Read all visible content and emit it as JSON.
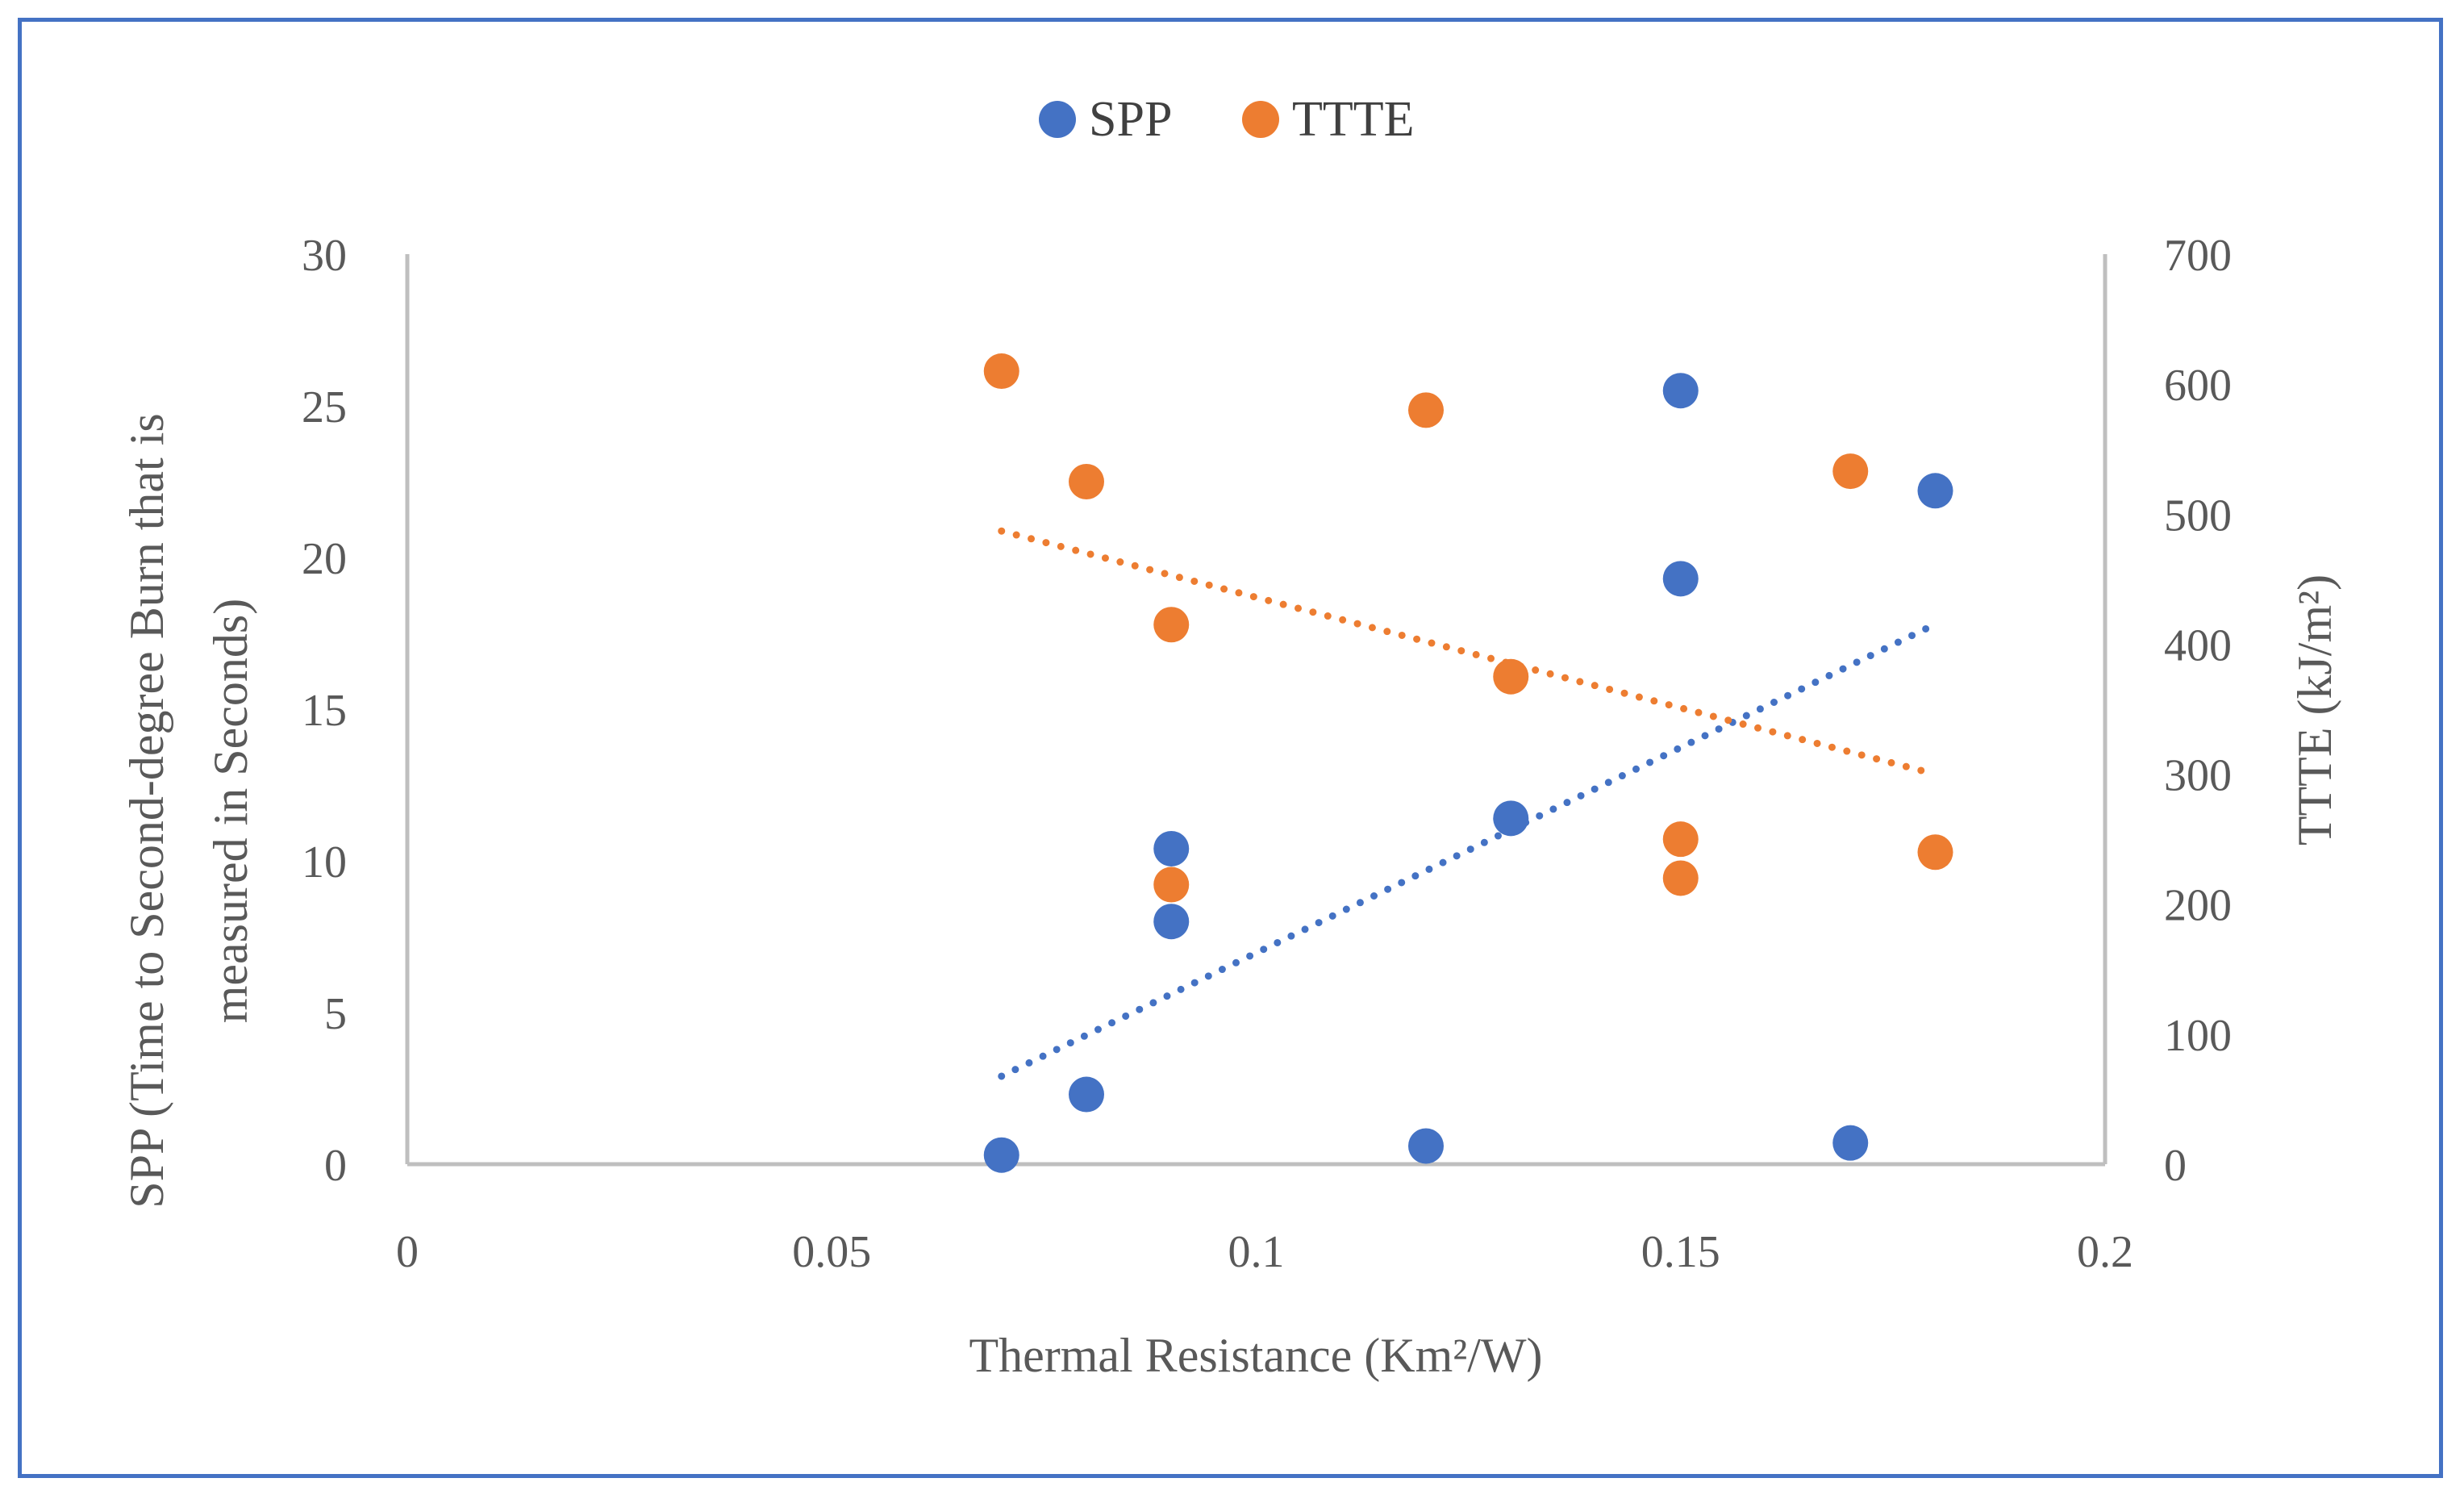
{
  "colors": {
    "frame": "#4472C4",
    "spp": "#4472C4",
    "ttte": "#ED7D31",
    "axis": "#BFBFBF",
    "text": "#595959",
    "y2_title": "#FF0000"
  },
  "chart_data": {
    "type": "scatter",
    "title": "",
    "legend": {
      "position": "top",
      "entries": [
        "SPP",
        "TTTE"
      ]
    },
    "xlabel": "Thermal Resistance (Km²/W)",
    "ylabel": "SPP (Time to Second-degree Burn that is measured in Seconds)",
    "ylabel_lines": [
      "SPP (Time to Second-degree Burn that is",
      "measured in Seconds)"
    ],
    "y2label": "TTTE (kJ/m²)",
    "xlim": [
      0,
      0.2
    ],
    "ylim": [
      0,
      30
    ],
    "y2lim": [
      0,
      700
    ],
    "x_ticks": [
      "0",
      "0.05",
      "0.1",
      "0.15",
      "0.2"
    ],
    "x_tick_values": [
      0,
      0.05,
      0.1,
      0.15,
      0.2
    ],
    "y_ticks": [
      "0",
      "5",
      "10",
      "15",
      "20",
      "25",
      "30"
    ],
    "y_tick_values": [
      0,
      5,
      10,
      15,
      20,
      25,
      30
    ],
    "y2_ticks": [
      "0",
      "100",
      "200",
      "300",
      "400",
      "500",
      "600",
      "700"
    ],
    "y2_tick_values": [
      0,
      100,
      200,
      300,
      400,
      500,
      600,
      700
    ],
    "grid": false,
    "series": [
      {
        "name": "SPP",
        "axis": "left",
        "points": [
          {
            "x": 0.07,
            "y": 0.3
          },
          {
            "x": 0.08,
            "y": 2.3
          },
          {
            "x": 0.09,
            "y": 10.4
          },
          {
            "x": 0.09,
            "y": 8.0
          },
          {
            "x": 0.12,
            "y": 0.6
          },
          {
            "x": 0.13,
            "y": 11.4
          },
          {
            "x": 0.15,
            "y": 25.5
          },
          {
            "x": 0.15,
            "y": 19.3
          },
          {
            "x": 0.17,
            "y": 0.7
          },
          {
            "x": 0.18,
            "y": 22.2
          }
        ],
        "trendline": {
          "style": "dotted",
          "x": [
            0.07,
            0.18
          ],
          "y": [
            2.9,
            17.8
          ]
        }
      },
      {
        "name": "TTTE",
        "axis": "right",
        "points": [
          {
            "x": 0.07,
            "y": 610
          },
          {
            "x": 0.08,
            "y": 525
          },
          {
            "x": 0.09,
            "y": 415
          },
          {
            "x": 0.09,
            "y": 215
          },
          {
            "x": 0.12,
            "y": 580
          },
          {
            "x": 0.13,
            "y": 375
          },
          {
            "x": 0.15,
            "y": 250
          },
          {
            "x": 0.15,
            "y": 220
          },
          {
            "x": 0.17,
            "y": 533
          },
          {
            "x": 0.18,
            "y": 240
          }
        ],
        "trendline": {
          "style": "dotted",
          "x": [
            0.07,
            0.18
          ],
          "y": [
            487,
            300
          ]
        }
      }
    ]
  }
}
